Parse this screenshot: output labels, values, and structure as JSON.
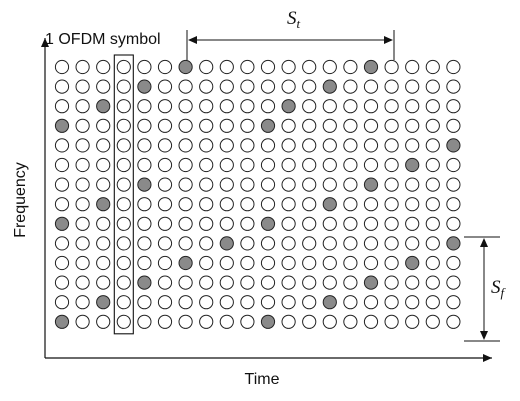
{
  "labels": {
    "symbol": "1 OFDM symbol",
    "time_axis": "Time",
    "frequency_axis": "Frequency",
    "st_main": "S",
    "st_sub": "t",
    "sf_main": "S",
    "sf_sub": "f"
  },
  "grid": {
    "rows": 14,
    "cols": 20,
    "highlighted_symbol_col": 3,
    "pilot_pattern": [
      [
        6,
        15
      ],
      [
        4,
        13
      ],
      [
        2,
        11
      ],
      [
        0,
        10
      ],
      [
        19
      ],
      [
        17
      ],
      [
        4,
        15
      ],
      [
        2,
        13
      ],
      [
        0,
        10
      ],
      [
        8,
        19
      ],
      [
        6,
        17
      ],
      [
        4,
        15
      ],
      [
        2,
        13
      ],
      [
        0,
        10
      ]
    ]
  },
  "colors": {
    "pilot_fill": "#8a8a8a",
    "cell_fill": "#ffffff",
    "stroke": "#222222"
  }
}
